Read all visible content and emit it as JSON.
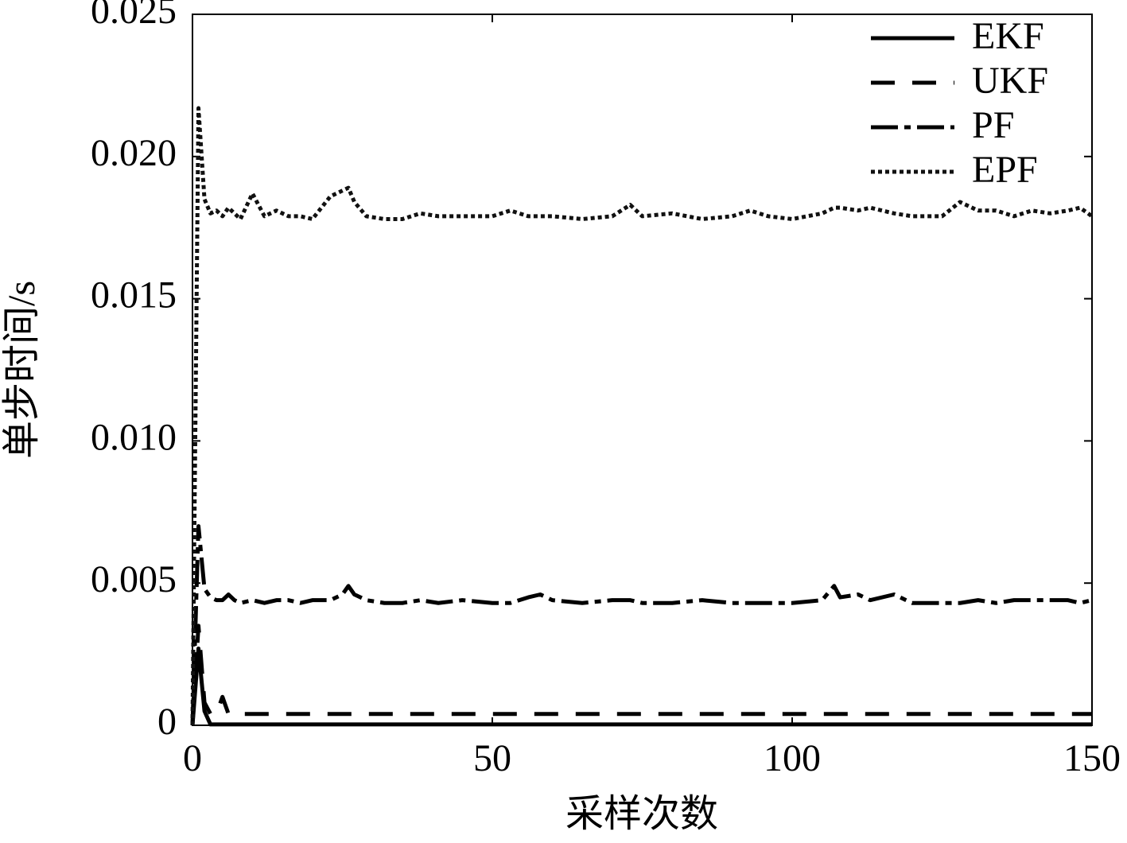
{
  "chart_data": {
    "type": "line",
    "xlabel": "采样次数",
    "ylabel": "单步时间/s",
    "x": [
      0,
      1,
      2,
      3,
      4,
      5,
      6,
      7,
      8,
      10,
      12,
      14,
      16,
      18,
      20,
      23,
      25,
      26,
      27,
      29,
      32,
      35,
      38,
      41,
      45,
      50,
      53,
      56,
      58,
      60,
      65,
      70,
      73,
      75,
      80,
      85,
      90,
      93,
      96,
      100,
      105,
      107,
      108,
      111,
      113,
      117,
      120,
      125,
      128,
      131,
      134,
      137,
      140,
      143,
      146,
      148,
      150
    ],
    "series": [
      {
        "name": "EKF",
        "color": "#000000",
        "dash": "solid",
        "values": [
          0,
          0.0027,
          0.0005,
          3e-05,
          3e-05,
          3e-05,
          3e-05,
          3e-05,
          3e-05,
          3e-05,
          3e-05,
          3e-05,
          3e-05,
          3e-05,
          3e-05,
          3e-05,
          3e-05,
          3e-05,
          3e-05,
          3e-05,
          3e-05,
          3e-05,
          3e-05,
          3e-05,
          3e-05,
          3e-05,
          3e-05,
          3e-05,
          3e-05,
          3e-05,
          3e-05,
          3e-05,
          3e-05,
          3e-05,
          3e-05,
          3e-05,
          3e-05,
          3e-05,
          3e-05,
          3e-05,
          3e-05,
          3e-05,
          3e-05,
          3e-05,
          3e-05,
          3e-05,
          3e-05,
          3e-05,
          3e-05,
          3e-05,
          3e-05,
          3e-05,
          3e-05,
          3e-05,
          3e-05,
          3e-05,
          3e-05
        ]
      },
      {
        "name": "UKF",
        "color": "#000000",
        "dash": "dashed",
        "values": [
          0,
          0.0035,
          0.0008,
          0.0004,
          0.0004,
          0.001,
          0.0004,
          0.0004,
          0.0004,
          0.0004,
          0.0004,
          0.0004,
          0.0004,
          0.0004,
          0.0004,
          0.0004,
          0.0004,
          0.0004,
          0.0004,
          0.0004,
          0.0004,
          0.0004,
          0.0004,
          0.0004,
          0.0004,
          0.0004,
          0.0004,
          0.0004,
          0.0004,
          0.0004,
          0.0004,
          0.0004,
          0.0004,
          0.0004,
          0.0004,
          0.0004,
          0.0004,
          0.0004,
          0.0004,
          0.0004,
          0.0004,
          0.0004,
          0.0004,
          0.0004,
          0.0004,
          0.0004,
          0.0004,
          0.0004,
          0.0004,
          0.0004,
          0.0004,
          0.0004,
          0.0004,
          0.0004,
          0.0004,
          0.0004,
          0.0004
        ]
      },
      {
        "name": "PF",
        "color": "#000000",
        "dash": "dashdot",
        "values": [
          0,
          0.007,
          0.0048,
          0.0045,
          0.0044,
          0.0044,
          0.0046,
          0.0044,
          0.0043,
          0.0044,
          0.0043,
          0.0044,
          0.0044,
          0.0043,
          0.0044,
          0.0044,
          0.0046,
          0.0049,
          0.0046,
          0.0044,
          0.0043,
          0.0043,
          0.0044,
          0.0043,
          0.0044,
          0.0043,
          0.0043,
          0.0045,
          0.0046,
          0.0044,
          0.0043,
          0.0044,
          0.0044,
          0.0043,
          0.0043,
          0.0044,
          0.0043,
          0.0043,
          0.0043,
          0.0043,
          0.0044,
          0.0049,
          0.0045,
          0.0046,
          0.0044,
          0.0046,
          0.0043,
          0.0043,
          0.0043,
          0.0044,
          0.0043,
          0.0044,
          0.0044,
          0.0044,
          0.0044,
          0.0043,
          0.0044
        ]
      },
      {
        "name": "EPF",
        "color": "#111111",
        "dash": "dotted",
        "values": [
          0,
          0.0217,
          0.0185,
          0.018,
          0.0181,
          0.0179,
          0.0182,
          0.018,
          0.0178,
          0.0187,
          0.0179,
          0.0181,
          0.0179,
          0.0179,
          0.0178,
          0.0186,
          0.0188,
          0.0189,
          0.0184,
          0.0179,
          0.0178,
          0.0178,
          0.018,
          0.0179,
          0.0179,
          0.0179,
          0.0181,
          0.0179,
          0.0179,
          0.0179,
          0.0178,
          0.0179,
          0.0183,
          0.0179,
          0.018,
          0.0178,
          0.0179,
          0.0181,
          0.0179,
          0.0178,
          0.018,
          0.0182,
          0.0182,
          0.0181,
          0.0182,
          0.018,
          0.0179,
          0.0179,
          0.0184,
          0.0181,
          0.0181,
          0.0179,
          0.0181,
          0.018,
          0.0181,
          0.0182,
          0.0179
        ]
      }
    ],
    "xlim": [
      0,
      150
    ],
    "xticks": [
      0,
      50,
      100,
      150
    ],
    "ylim": [
      0,
      0.025
    ],
    "yticks": [
      0,
      0.005,
      {
        "value": 0.01,
        "label": "0.010"
      },
      0.015,
      {
        "value": 0.02,
        "label": "0.020"
      },
      0.025
    ],
    "legend": "upper right"
  }
}
